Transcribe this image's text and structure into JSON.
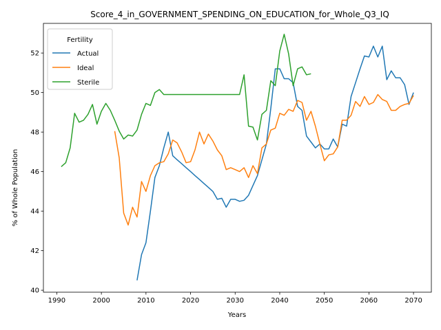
{
  "chart_data": {
    "type": "line",
    "title": "Score_4_in_GOVERNMENT_SPENDING_ON_EDUCATION_for_Whole_Q3_IQ",
    "xlabel": "Years",
    "ylabel": "% of Whole Population",
    "xlim": [
      1987,
      2074
    ],
    "ylim": [
      39.9,
      53.5
    ],
    "xticks": [
      1990,
      2000,
      2010,
      2020,
      2030,
      2040,
      2050,
      2060,
      2070
    ],
    "yticks": [
      40,
      42,
      44,
      46,
      48,
      50,
      52
    ],
    "grid": false,
    "legend": {
      "title": "Fertility",
      "placement": "top-left"
    },
    "series": [
      {
        "name": "Actual",
        "color": "#1f77b4",
        "x": [
          2008,
          2009,
          2010,
          2011,
          2012,
          2013,
          2014,
          2015,
          2016,
          2017,
          2018,
          2019,
          2020,
          2021,
          2022,
          2023,
          2024,
          2025,
          2026,
          2027,
          2028,
          2029,
          2030,
          2031,
          2032,
          2033,
          2034,
          2035,
          2036,
          2037,
          2038,
          2039,
          2040,
          2041,
          2042,
          2043,
          2044,
          2045,
          2046,
          2047,
          2048,
          2049,
          2050,
          2051,
          2052,
          2053,
          2054,
          2055,
          2056,
          2057,
          2058,
          2059,
          2060,
          2061,
          2062,
          2063,
          2064,
          2065,
          2066,
          2067,
          2068,
          2069,
          2070
        ],
        "values": [
          40.5,
          41.8,
          42.4,
          44.0,
          45.7,
          46.3,
          47.2,
          48.0,
          46.8,
          46.6,
          46.4,
          46.2,
          46.0,
          45.8,
          45.6,
          45.4,
          45.2,
          45.0,
          44.6,
          44.65,
          44.2,
          44.6,
          44.6,
          44.5,
          44.55,
          44.8,
          45.3,
          45.8,
          46.6,
          47.4,
          49.2,
          51.2,
          51.2,
          50.7,
          50.7,
          50.5,
          49.3,
          49.1,
          47.8,
          47.5,
          47.2,
          47.4,
          47.15,
          47.15,
          47.65,
          47.25,
          48.4,
          48.3,
          49.8,
          50.5,
          51.2,
          51.85,
          51.8,
          52.35,
          51.8,
          52.35,
          50.65,
          51.1,
          50.75,
          50.75,
          50.4,
          49.4,
          50.0
        ]
      },
      {
        "name": "Ideal",
        "color": "#ff7f0e",
        "x": [
          2003,
          2004,
          2005,
          2006,
          2007,
          2008,
          2009,
          2010,
          2011,
          2012,
          2013,
          2014,
          2015,
          2016,
          2017,
          2018,
          2019,
          2020,
          2021,
          2022,
          2023,
          2024,
          2025,
          2026,
          2027,
          2028,
          2029,
          2030,
          2031,
          2032,
          2033,
          2034,
          2035,
          2036,
          2037,
          2038,
          2039,
          2040,
          2041,
          2042,
          2043,
          2044,
          2045,
          2046,
          2047,
          2048,
          2049,
          2050,
          2051,
          2052,
          2053,
          2054,
          2055,
          2056,
          2057,
          2058,
          2059,
          2060,
          2061,
          2062,
          2063,
          2064,
          2065,
          2066,
          2067,
          2068,
          2069,
          2070
        ],
        "values": [
          48.05,
          46.7,
          43.9,
          43.3,
          44.2,
          43.7,
          45.5,
          45.0,
          45.8,
          46.3,
          46.45,
          46.5,
          46.9,
          47.6,
          47.45,
          47.0,
          46.45,
          46.5,
          47.1,
          48.0,
          47.4,
          47.9,
          47.55,
          47.1,
          46.8,
          46.1,
          46.2,
          46.1,
          46.0,
          46.2,
          45.7,
          46.3,
          45.9,
          47.2,
          47.4,
          48.1,
          48.2,
          48.95,
          48.85,
          49.15,
          49.05,
          49.6,
          49.5,
          48.6,
          49.05,
          48.3,
          47.4,
          46.55,
          46.85,
          46.9,
          47.25,
          48.6,
          48.6,
          48.85,
          49.55,
          49.3,
          49.8,
          49.4,
          49.5,
          49.9,
          49.65,
          49.55,
          49.1,
          49.1,
          49.3,
          49.4,
          49.45,
          49.85
        ]
      },
      {
        "name": "Sterile",
        "color": "#2ca02c",
        "x": [
          1991,
          1992,
          1993,
          1994,
          1995,
          1996,
          1997,
          1998,
          1999,
          2000,
          2001,
          2002,
          2003,
          2004,
          2005,
          2006,
          2007,
          2008,
          2009,
          2010,
          2011,
          2012,
          2013,
          2014,
          2015,
          2016,
          2017,
          2018,
          2019,
          2020,
          2021,
          2022,
          2023,
          2024,
          2025,
          2026,
          2027,
          2028,
          2029,
          2030,
          2031,
          2032,
          2033,
          2034,
          2035,
          2036,
          2037,
          2038,
          2039,
          2040,
          2041,
          2042,
          2043,
          2044,
          2045,
          2046,
          2047
        ],
        "values": [
          46.25,
          46.45,
          47.2,
          48.95,
          48.5,
          48.6,
          48.9,
          49.4,
          48.4,
          49.05,
          49.45,
          49.1,
          48.6,
          48.05,
          47.65,
          47.85,
          47.8,
          48.1,
          48.9,
          49.45,
          49.35,
          50.0,
          50.15,
          49.9,
          49.9,
          49.9,
          49.9,
          49.9,
          49.9,
          49.9,
          49.9,
          49.9,
          49.9,
          49.9,
          49.9,
          49.9,
          49.9,
          49.9,
          49.9,
          49.9,
          49.9,
          50.9,
          48.3,
          48.25,
          47.6,
          48.9,
          49.1,
          50.6,
          50.35,
          52.1,
          52.95,
          51.95,
          50.35,
          51.2,
          51.3,
          50.9,
          50.95
        ]
      }
    ]
  }
}
